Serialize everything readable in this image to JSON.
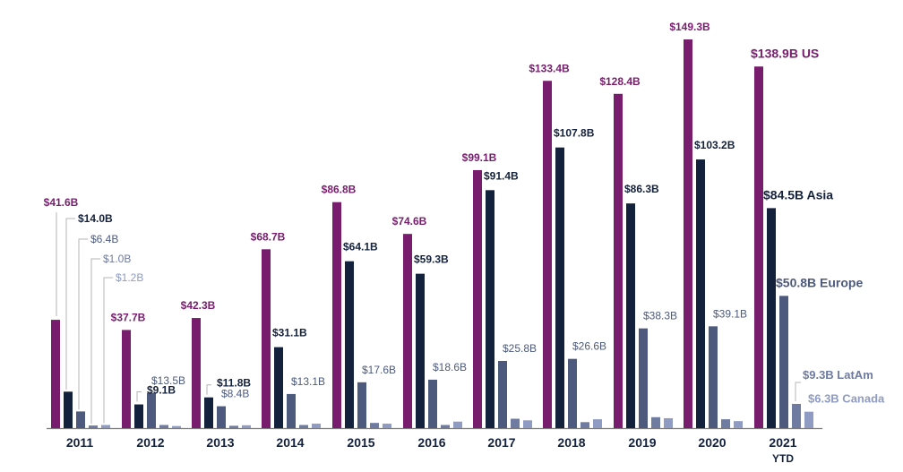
{
  "colors": {
    "US": "#781c6e",
    "Asia": "#14213d",
    "Europe": "#4d5a7e",
    "LatAm": "#6f7ba1",
    "Canada": "#8f9bc2",
    "axis": "#7a7a7a",
    "year_text": "#14213d"
  },
  "chart_data": {
    "type": "bar",
    "title": "",
    "xlabel": "",
    "ylabel": "",
    "ylim": [
      0,
      150
    ],
    "grid": false,
    "legend": "none (series labelled on final year group)",
    "categories": [
      "2011",
      "2012",
      "2013",
      "2014",
      "2015",
      "2016",
      "2017",
      "2018",
      "2019",
      "2020",
      "2021"
    ],
    "category_sublabels": [
      "",
      "",
      "",
      "",
      "",
      "",
      "",
      "",
      "",
      "",
      "YTD"
    ],
    "series": [
      {
        "name": "US",
        "values": [
          41.6,
          37.7,
          42.3,
          68.7,
          86.8,
          74.6,
          99.1,
          133.4,
          128.4,
          149.3,
          138.9
        ],
        "labels": [
          "$41.6B",
          "$37.7B",
          "$42.3B",
          "$68.7B",
          "$86.8B",
          "$74.6B",
          "$99.1B",
          "$133.4B",
          "$128.4B",
          "$149.3B",
          "$138.9B US"
        ]
      },
      {
        "name": "Asia",
        "values": [
          14.0,
          9.1,
          11.8,
          31.1,
          64.1,
          59.3,
          91.4,
          107.8,
          86.3,
          103.2,
          84.5
        ],
        "labels": [
          "$14.0B",
          "$9.1B",
          "$11.8B",
          "$31.1B",
          "$64.1B",
          "$59.3B",
          "$91.4B",
          "$107.8B",
          "$86.3B",
          "$103.2B",
          "$84.5B Asia"
        ]
      },
      {
        "name": "Europe",
        "values": [
          6.4,
          13.5,
          8.4,
          13.1,
          17.6,
          18.6,
          25.8,
          26.6,
          38.3,
          39.1,
          50.8
        ],
        "labels": [
          "$6.4B",
          "$13.5B",
          "$8.4B",
          "$13.1B",
          "$17.6B",
          "$18.6B",
          "$25.8B",
          "$26.6B",
          "$38.3B",
          "$39.1B",
          "$50.8B Europe"
        ]
      },
      {
        "name": "LatAm",
        "values": [
          1.0,
          1.2,
          0.9,
          1.2,
          2.0,
          1.2,
          3.6,
          2.3,
          4.2,
          3.4,
          9.3
        ],
        "labels": [
          "$1.0B",
          "",
          "",
          "",
          "",
          "",
          "",
          "",
          "",
          "",
          "$9.3B LatAm"
        ]
      },
      {
        "name": "Canada",
        "values": [
          1.2,
          0.8,
          1.1,
          1.7,
          1.7,
          2.5,
          3.0,
          3.4,
          3.8,
          2.7,
          6.3
        ],
        "labels": [
          "$1.2B",
          "",
          "",
          "",
          "",
          "",
          "",
          "",
          "",
          "",
          "$6.3B Canada"
        ]
      }
    ]
  }
}
